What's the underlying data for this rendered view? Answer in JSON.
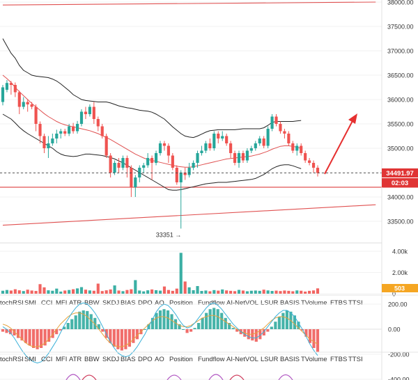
{
  "chart_data": [
    {
      "type": "candlestick",
      "panel": "price",
      "y_ticks": [
        33500,
        34000,
        34500,
        35000,
        35500,
        36000,
        36500,
        37000,
        37500,
        38000
      ],
      "y_tick_labels": [
        "33500.00",
        "34000.00",
        "34500.00",
        "35000.00",
        "35500.00",
        "36000.00",
        "36500.00",
        "37000.00",
        "37500.00",
        "38000.00"
      ],
      "ylim": [
        33060,
        38020
      ],
      "grid": true,
      "last_price": 34491.97,
      "last_price_label": "34491.97",
      "countdown_label": "02:03",
      "low_annotation_label": "33351 →",
      "low_annotation_value": 33351,
      "support_level": 34200,
      "trendlines": [
        {
          "from": [
            0,
            37940
          ],
          "to": [
            90,
            38000
          ]
        },
        {
          "from": [
            0,
            33420
          ],
          "to": [
            90,
            33840
          ]
        }
      ],
      "candles": [
        [
          35950,
          36250,
          36300,
          35880
        ],
        [
          36200,
          36340,
          36400,
          36150
        ],
        [
          36340,
          36300,
          36380,
          36100
        ],
        [
          36300,
          36150,
          36350,
          36050
        ],
        [
          36150,
          35850,
          36180,
          35700
        ],
        [
          35850,
          35950,
          36050,
          35800
        ],
        [
          35950,
          35900,
          36000,
          35750
        ],
        [
          35900,
          35850,
          35950,
          35800
        ],
        [
          35850,
          35500,
          35900,
          35350
        ],
        [
          35500,
          35250,
          35550,
          35100
        ],
        [
          35250,
          35000,
          35300,
          34900
        ],
        [
          35000,
          35100,
          35250,
          34800
        ],
        [
          35100,
          35200,
          35300,
          35050
        ],
        [
          35200,
          35300,
          35380,
          35100
        ],
        [
          35300,
          35350,
          35400,
          35200
        ],
        [
          35350,
          35300,
          35400,
          35250
        ],
        [
          35300,
          35450,
          35500,
          35250
        ],
        [
          35450,
          35350,
          35520,
          35300
        ],
        [
          35350,
          35500,
          35560,
          35300
        ],
        [
          35500,
          35750,
          35800,
          35450
        ],
        [
          35750,
          35700,
          35850,
          35600
        ],
        [
          35700,
          35850,
          35900,
          35650
        ],
        [
          35850,
          35600,
          35950,
          35500
        ],
        [
          35600,
          35450,
          35650,
          35350
        ],
        [
          35450,
          35250,
          35500,
          35200
        ],
        [
          35250,
          34850,
          35300,
          34800
        ],
        [
          34850,
          34500,
          34900,
          34400
        ],
        [
          34500,
          34700,
          34750,
          34450
        ],
        [
          34700,
          34600,
          34800,
          34500
        ],
        [
          34600,
          34800,
          34850,
          34550
        ],
        [
          34800,
          34600,
          34850,
          34400
        ],
        [
          34600,
          34200,
          34650,
          34000
        ],
        [
          34200,
          34400,
          34450,
          34000
        ],
        [
          34400,
          34600,
          34650,
          34300
        ],
        [
          34600,
          34650,
          34700,
          34500
        ],
        [
          34650,
          34800,
          34900,
          34600
        ],
        [
          34800,
          34700,
          34850,
          34350
        ],
        [
          34700,
          34900,
          34950,
          34650
        ],
        [
          34900,
          35100,
          35150,
          34850
        ],
        [
          35100,
          35050,
          35150,
          34950
        ],
        [
          35050,
          34850,
          35100,
          34700
        ],
        [
          34850,
          34600,
          34900,
          34550
        ],
        [
          34600,
          34300,
          34650,
          34250
        ],
        [
          34300,
          34500,
          34550,
          33351
        ],
        [
          34500,
          34450,
          34600,
          34350
        ],
        [
          34450,
          34600,
          34700,
          34400
        ],
        [
          34600,
          34700,
          34750,
          34550
        ],
        [
          34700,
          34900,
          34950,
          34600
        ],
        [
          34900,
          34950,
          35050,
          34850
        ],
        [
          34950,
          35100,
          35150,
          34900
        ],
        [
          35100,
          35000,
          35200,
          34950
        ],
        [
          35000,
          35300,
          35350,
          34950
        ],
        [
          35300,
          35200,
          35350,
          35100
        ],
        [
          35200,
          35250,
          35350,
          35150
        ],
        [
          35250,
          35100,
          35300,
          35050
        ],
        [
          35100,
          34900,
          35150,
          34800
        ],
        [
          34900,
          34700,
          34950,
          34650
        ],
        [
          34700,
          34900,
          34950,
          34600
        ],
        [
          34900,
          34750,
          34950,
          34700
        ],
        [
          34750,
          34950,
          35000,
          34700
        ],
        [
          34950,
          35000,
          35050,
          34900
        ],
        [
          35000,
          35100,
          35150,
          34950
        ],
        [
          35100,
          35200,
          35250,
          35050
        ],
        [
          35200,
          35050,
          35250,
          35000
        ],
        [
          35050,
          35400,
          35450,
          35000
        ],
        [
          35400,
          35650,
          35700,
          35350
        ],
        [
          35650,
          35500,
          35700,
          35450
        ],
        [
          35500,
          35350,
          35550,
          35300
        ],
        [
          35350,
          35300,
          35400,
          35200
        ],
        [
          35300,
          35100,
          35350,
          35050
        ],
        [
          35100,
          34950,
          35150,
          34900
        ],
        [
          34950,
          35050,
          35100,
          34850
        ],
        [
          35050,
          34900,
          35100,
          34850
        ],
        [
          34900,
          34750,
          34950,
          34700
        ],
        [
          34750,
          34700,
          34800,
          34650
        ],
        [
          34700,
          34600,
          34750,
          34500
        ],
        [
          34600,
          34491.97,
          34650,
          34420
        ]
      ],
      "series": [
        {
          "role": "upper-band",
          "from_index": 0,
          "values": [
            37250,
            37100,
            36950,
            36850,
            36700,
            36600,
            36550,
            36500,
            36480,
            36470,
            36460,
            36450,
            36420,
            36380,
            36320,
            36250,
            36180,
            36100,
            36050,
            36000,
            35980,
            35970,
            35960,
            35950,
            35950,
            35950,
            35930,
            35900,
            35870,
            35850,
            35830,
            35820,
            35800,
            35780,
            35770,
            35760,
            35740,
            35700,
            35650,
            35600,
            35520,
            35440,
            35370,
            35300,
            35250,
            35230,
            35220,
            35250,
            35290,
            35330,
            35360,
            35370,
            35380,
            35380,
            35380,
            35380,
            35380,
            35390,
            35400,
            35400,
            35400,
            35400,
            35400,
            35420,
            35470,
            35530,
            35550,
            35550,
            35550,
            35550,
            35550,
            35560,
            35570
          ]
        },
        {
          "role": "lower-band",
          "from_index": 0,
          "values": [
            35700,
            35650,
            35600,
            35520,
            35430,
            35360,
            35300,
            35250,
            35200,
            35150,
            35100,
            35050,
            35000,
            34930,
            34880,
            34850,
            34840,
            34830,
            34840,
            34860,
            34880,
            34880,
            34870,
            34860,
            34850,
            34830,
            34810,
            34780,
            34740,
            34700,
            34650,
            34600,
            34550,
            34500,
            34450,
            34400,
            34350,
            34300,
            34250,
            34200,
            34150,
            34140,
            34140,
            34150,
            34170,
            34190,
            34210,
            34230,
            34250,
            34270,
            34280,
            34290,
            34300,
            34300,
            34300,
            34310,
            34320,
            34330,
            34340,
            34350,
            34360,
            34380,
            34420,
            34460,
            34520,
            34580,
            34620,
            34650,
            34660,
            34660,
            34640,
            34610,
            34580
          ]
        },
        {
          "role": "moving-average",
          "from_index": 0,
          "values": [
            36500,
            36430,
            36350,
            36250,
            36160,
            36080,
            36000,
            35920,
            35850,
            35780,
            35710,
            35650,
            35600,
            35550,
            35510,
            35480,
            35460,
            35440,
            35420,
            35400,
            35380,
            35360,
            35330,
            35300,
            35260,
            35220,
            35180,
            35130,
            35080,
            35030,
            34980,
            34930,
            34880,
            34840,
            34800,
            34770,
            34750,
            34730,
            34710,
            34690,
            34670,
            34650,
            34630,
            34620,
            34610,
            34610,
            34620,
            34640,
            34660,
            34680,
            34700,
            34720,
            34740,
            34760,
            34780,
            34790,
            34800,
            34810,
            34820,
            34830,
            34840,
            34860,
            34880,
            34910,
            34940,
            34980,
            35010,
            35040,
            35050,
            35050,
            35040,
            35020,
            35000
          ]
        }
      ]
    },
    {
      "type": "bar",
      "panel": "volume",
      "y_ticks": [
        0,
        2000,
        4000
      ],
      "y_tick_labels": [
        "0",
        "2.00k",
        "4.00k"
      ],
      "ylim": [
        0,
        4500
      ],
      "current_value": 503,
      "current_label": "503",
      "values": [
        280,
        350,
        300,
        420,
        320,
        250,
        380,
        300,
        260,
        900,
        600,
        320,
        280,
        480,
        200,
        300,
        350,
        420,
        500,
        620,
        380,
        310,
        280,
        950,
        250,
        320,
        400,
        780,
        300,
        240,
        350,
        420,
        1280,
        300,
        220,
        320,
        400,
        330,
        290,
        680,
        350,
        270,
        480,
        3850,
        1150,
        600,
        330,
        720,
        260,
        300,
        230,
        340,
        290,
        400,
        310,
        270,
        240,
        360,
        300,
        230,
        280,
        300,
        270,
        380,
        310,
        260,
        290,
        250,
        300,
        270,
        230,
        310,
        280,
        200,
        270,
        310,
        503
      ],
      "colors_by_candle": true
    },
    {
      "type": "bar",
      "panel": "oscillator",
      "y_ticks": [
        -400,
        -200,
        0,
        200
      ],
      "y_tick_labels": [
        "-400.00",
        "-200.00",
        "0.00",
        "200.00"
      ],
      "ylim": [
        -420,
        280
      ],
      "values": [
        -20,
        -30,
        -40,
        -50,
        -70,
        -90,
        -110,
        -130,
        -150,
        -160,
        -150,
        -130,
        -100,
        -70,
        -40,
        -10,
        20,
        50,
        80,
        110,
        140,
        150,
        145,
        120,
        90,
        40,
        -20,
        -70,
        -110,
        -140,
        -160,
        -170,
        -160,
        -140,
        -110,
        -80,
        -40,
        0,
        40,
        90,
        130,
        150,
        160,
        150,
        120,
        80,
        40,
        0,
        -30,
        -20,
        10,
        50,
        90,
        130,
        160,
        170,
        160,
        130,
        90,
        50,
        10,
        -20,
        -40,
        -60,
        -80,
        -90,
        -100,
        -80,
        -50,
        -20,
        20,
        60,
        100,
        130,
        150,
        140,
        110,
        60,
        -10,
        -60,
        -110,
        -150,
        -180
      ],
      "series": [
        {
          "role": "signal",
          "values": [
            40,
            30,
            10,
            -20,
            -50,
            -80,
            -110,
            -130,
            -140,
            -140,
            -130,
            -110,
            -80,
            -40,
            0,
            40,
            70,
            100,
            120,
            130,
            130,
            120,
            100,
            70,
            40,
            0,
            -40,
            -80,
            -110,
            -130,
            -140,
            -140,
            -130,
            -110,
            -80,
            -50,
            -20,
            10,
            40,
            70,
            90,
            100,
            100,
            90,
            70,
            50,
            30,
            20,
            20,
            30,
            50,
            70,
            90,
            100,
            110,
            110,
            100,
            80,
            60,
            40,
            20,
            0,
            -20,
            -30,
            -40,
            -40,
            -30,
            -10,
            10,
            40,
            70,
            90,
            100,
            100,
            90,
            70,
            40,
            10,
            -20,
            -50,
            -80,
            -100,
            -120
          ]
        },
        {
          "role": "macd",
          "values": [
            20,
            0,
            -30,
            -70,
            -120,
            -170,
            -210,
            -240,
            -260,
            -270,
            -260,
            -230,
            -190,
            -140,
            -90,
            -30,
            30,
            80,
            130,
            170,
            200,
            210,
            200,
            170,
            130,
            80,
            20,
            -40,
            -100,
            -150,
            -190,
            -210,
            -220,
            -210,
            -180,
            -140,
            -90,
            -40,
            20,
            80,
            140,
            180,
            200,
            190,
            160,
            120,
            70,
            30,
            10,
            20,
            50,
            90,
            130,
            170,
            200,
            210,
            190,
            160,
            120,
            80,
            40,
            10,
            -20,
            -40,
            -60,
            -70,
            -70,
            -50,
            -20,
            20,
            60,
            100,
            130,
            150,
            150,
            130,
            100,
            50,
            0,
            -60,
            -120,
            -170,
            -210
          ]
        }
      ]
    }
  ],
  "tabs_row_1": [
    "tochRSI",
    "SMI",
    "CCI",
    "MFI",
    "ATR",
    "BBW",
    "SKDJ",
    "BIAS",
    "DPO",
    "AO",
    "Position",
    "Fundflow",
    "AI-NetVOL",
    "LSUR",
    "BASIS",
    "TVolume",
    "FTBS",
    "TTSI"
  ],
  "tabs_row_2": [
    "tochRSI",
    "SMI",
    "CCI",
    "MFI",
    "ATR",
    "BBW",
    "SKDJ",
    "BIAS",
    "DPO",
    "AO",
    "Position",
    "Fundflow",
    "AI-NetVOL",
    "LSUR",
    "BASIS",
    "TVolume",
    "FTBS",
    "TTSI"
  ],
  "colors": {
    "up": "#26a69a",
    "down": "#ef5350",
    "band": "#222222",
    "moving_average": "#e05050",
    "trendline": "#e05050",
    "last_price_tag": "#e03535",
    "volume_tag": "#f5a623",
    "arrow": "#e63030",
    "signal_line": "#e6a23c",
    "macd_line": "#3ab0d8"
  }
}
